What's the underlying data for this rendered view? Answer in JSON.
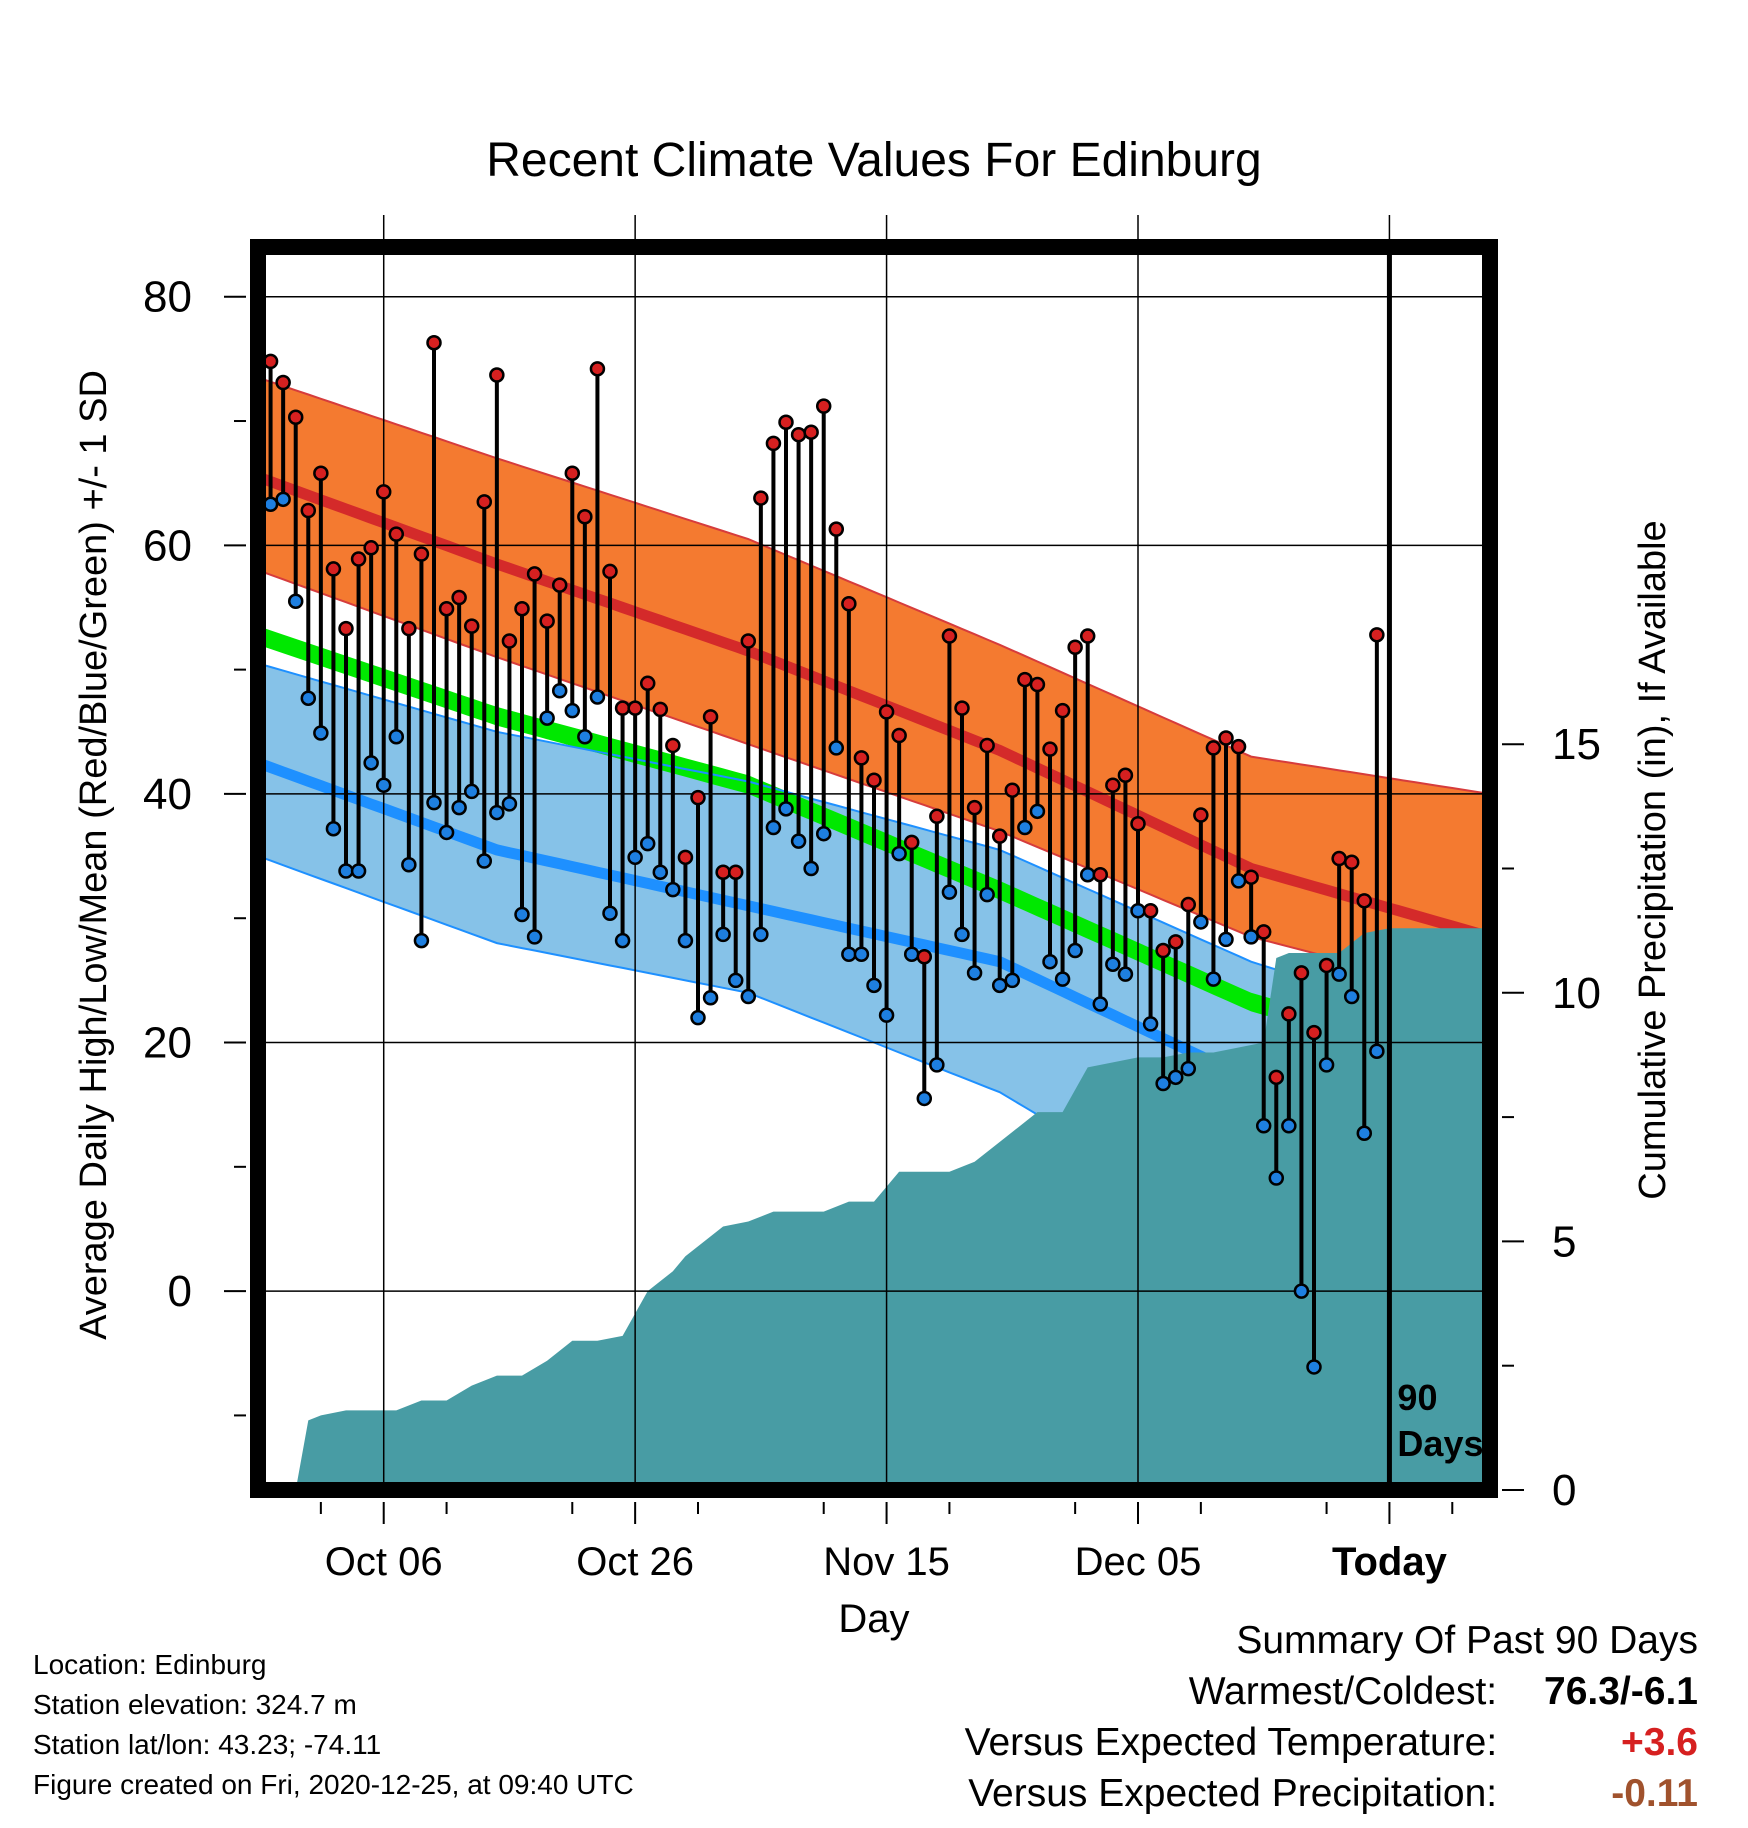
{
  "chart_data": {
    "type": "line",
    "title": "Recent Climate Values For Edinburg",
    "xlabel": "Day",
    "ylabel": "Average Daily High/Low/Mean (Red/Blue/Green) +/- 1 SD",
    "y2label": "Cumulative Precipitation (in), If Available",
    "ylim": [
      -16,
      84
    ],
    "y2lim": [
      0,
      25
    ],
    "yticks": [
      0,
      20,
      40,
      60,
      80
    ],
    "y2ticks": [
      0,
      5,
      10,
      15
    ],
    "xlim_days": [
      -89,
      9
    ],
    "xticks": [
      {
        "day": -79,
        "label": "Oct 06"
      },
      {
        "day": -59,
        "label": "Oct 26"
      },
      {
        "day": -39,
        "label": "Nov 15"
      },
      {
        "day": -19,
        "label": "Dec 05"
      },
      {
        "day": 1,
        "label": "Today"
      }
    ],
    "grid": true,
    "today_marker": {
      "day": 1,
      "label": "90 Days"
    },
    "normals": {
      "days": [
        -89,
        -70,
        -50,
        -30,
        -10,
        9
      ],
      "high_mean": [
        65.5,
        58.5,
        51.5,
        43.5,
        34,
        28.5
      ],
      "high_upper": [
        73.5,
        67,
        60.5,
        52,
        43,
        40
      ],
      "high_lower": [
        58,
        51,
        44,
        37,
        28.5,
        23.5
      ],
      "low_mean": [
        42.5,
        35.5,
        31,
        26.5,
        17,
        9.5
      ],
      "low_upper": [
        50.5,
        45,
        41,
        35.5,
        26.5,
        20.5
      ],
      "low_lower": [
        35,
        28,
        24,
        16,
        4,
        -1
      ],
      "mean_band_upper": [
        53.5,
        47,
        41.5,
        33,
        24,
        18.5
      ],
      "mean_band_lower": [
        52,
        45.5,
        40,
        31.5,
        22.5,
        17
      ]
    },
    "daily_high": [
      76,
      74.8,
      73.1,
      70.3,
      62.8,
      65.8,
      58.1,
      53.3,
      58.9,
      59.8,
      64.3,
      60.9,
      53.3,
      59.3,
      76.3,
      54.9,
      55.8,
      53.5,
      63.5,
      73.7,
      52.3,
      54.9,
      57.7,
      53.9,
      56.8,
      65.8,
      62.3,
      74.2,
      57.9,
      46.9,
      46.9,
      48.9,
      46.8,
      43.9,
      34.9,
      39.7,
      46.2,
      33.7,
      33.7,
      52.3,
      63.8,
      68.2,
      69.9,
      68.9,
      69.1,
      71.2,
      61.3,
      55.3,
      42.9,
      41.1,
      46.6,
      44.7,
      36.1,
      26.9,
      38.2,
      52.7,
      46.9,
      38.9,
      43.9,
      36.6,
      40.3,
      49.2,
      48.8,
      43.6,
      46.7,
      51.8,
      52.7,
      33.5,
      40.7,
      41.5,
      37.6,
      30.6,
      27.4,
      28.1,
      31.1,
      38.3,
      43.7,
      44.5,
      43.8,
      33.3,
      28.9,
      17.2,
      22.3,
      25.6,
      20.8,
      26.2,
      34.8,
      34.5,
      31.4,
      52.8
    ],
    "daily_low": [
      49.3,
      63.3,
      63.7,
      55.5,
      47.7,
      44.9,
      37.2,
      33.8,
      33.8,
      42.5,
      40.7,
      44.6,
      34.3,
      28.2,
      39.3,
      36.9,
      38.9,
      40.2,
      34.6,
      38.5,
      39.2,
      30.3,
      28.5,
      46.1,
      48.3,
      46.7,
      44.6,
      47.8,
      30.4,
      28.2,
      34.9,
      36.0,
      33.7,
      32.3,
      28.2,
      22.0,
      23.6,
      28.7,
      25.0,
      23.7,
      28.7,
      37.3,
      38.8,
      36.2,
      34.0,
      36.8,
      43.7,
      27.1,
      27.1,
      24.6,
      22.2,
      35.2,
      27.1,
      15.5,
      18.2,
      32.1,
      28.7,
      25.6,
      31.9,
      24.6,
      25.0,
      37.3,
      38.6,
      26.5,
      25.1,
      27.4,
      33.5,
      23.1,
      26.3,
      25.5,
      30.6,
      21.5,
      16.7,
      17.2,
      17.9,
      29.7,
      25.1,
      28.3,
      33.0,
      28.5,
      13.3,
      9.1,
      13.3,
      0.0,
      -6.1,
      18.2,
      25.5,
      23.7,
      12.7,
      19.3
    ],
    "cumulative_precip": {
      "days": [
        -89,
        -86,
        -85,
        -84,
        -82,
        -78,
        -76,
        -74,
        -72,
        -70,
        -68,
        -66,
        -64,
        -62,
        -60,
        -58,
        -56,
        -55,
        -53,
        -52,
        -50,
        -48,
        -46,
        -44,
        -42,
        -40,
        -38,
        -36,
        -34,
        -32,
        -29,
        -27,
        -25,
        -23,
        -21,
        -19,
        -17,
        -15,
        -13,
        -11,
        -9,
        -8,
        -7,
        -5,
        -3,
        -1,
        1,
        3,
        9
      ],
      "values": [
        0,
        0,
        1.4,
        1.5,
        1.6,
        1.6,
        1.8,
        1.8,
        2.1,
        2.3,
        2.3,
        2.6,
        3.0,
        3.0,
        3.1,
        4.0,
        4.4,
        4.7,
        5.1,
        5.3,
        5.4,
        5.6,
        5.6,
        5.6,
        5.8,
        5.8,
        6.4,
        6.4,
        6.4,
        6.6,
        7.2,
        7.6,
        7.6,
        8.5,
        8.6,
        8.7,
        8.7,
        8.8,
        8.8,
        8.9,
        9.0,
        10.7,
        10.8,
        10.8,
        10.8,
        11.2,
        11.3,
        11.3,
        11.3
      ]
    }
  },
  "footer": {
    "location": "Location: Edinburg",
    "elevation": "Station elevation: 324.7 m",
    "latlon": "Station lat/lon: 43.23; -74.11",
    "created": "Figure created on Fri, 2020-12-25, at 09:40 UTC"
  },
  "summary": {
    "title": "Summary Of Past 90 Days",
    "warm_label": "Warmest/Coldest:",
    "warm_value": "76.3/-6.1",
    "temp_label": "Versus Expected Temperature:",
    "temp_value": "+3.6",
    "precip_label": "Versus Expected Precipitation:",
    "precip_value": "-0.11"
  },
  "colors": {
    "high_band": "#f47a30",
    "high_mean": "#d42a2a",
    "high_edge": "#d63c3c",
    "low_band": "#86c2e8",
    "low_mean": "#1e90ff",
    "mean_band": "#00e800",
    "overlap": "#9b1010",
    "precip": "#489ca4",
    "high_dot": "#d62020",
    "low_dot": "#1e7fe0",
    "temp_value": "#d62020",
    "precip_value": "#a0522d"
  }
}
